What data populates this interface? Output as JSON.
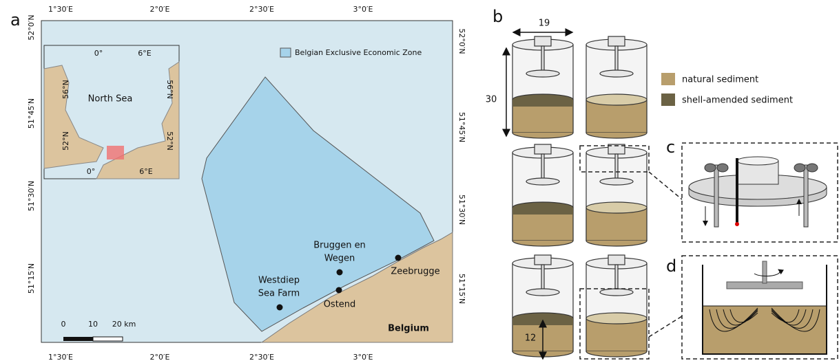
{
  "panels": {
    "a": "a",
    "b": "b",
    "c": "c",
    "d": "d"
  },
  "map": {
    "top_lon_labels": [
      "1°30′E",
      "2°0′E",
      "2°30′E",
      "3°0′E"
    ],
    "bottom_lon_labels": [
      "1°30′E",
      "2°0′E",
      "2°30′E",
      "3°0′E"
    ],
    "left_lat_labels": [
      "52°0′N",
      "51°45′N",
      "51°30′N",
      "51°15′N"
    ],
    "right_lat_labels": [
      "52°0′N",
      "51°45′N",
      "51°30′N",
      "51°15′N"
    ],
    "legend": "Belgian Exclusive Economic Zone",
    "places": [
      {
        "lines": [
          "Bruggen en",
          "Wegen"
        ]
      },
      {
        "lines": [
          "Ostend"
        ]
      },
      {
        "lines": [
          "Westdiep",
          "Sea Farm"
        ]
      },
      {
        "lines": [
          "Zeebrugge"
        ]
      }
    ],
    "country": "Belgium",
    "scale_labels": [
      "0",
      "10",
      "20 km"
    ],
    "inset": {
      "sea": "North Sea",
      "lon_labels": [
        "0°",
        "6°E",
        "0°",
        "6°E"
      ],
      "lat_labels": [
        "56°N",
        "52°N",
        "56°N",
        "52°N"
      ]
    }
  },
  "diagram": {
    "width": 19,
    "height": 30,
    "sediment_depth": 12,
    "legend": [
      "natural sediment",
      "shell-amended sediment"
    ]
  }
}
